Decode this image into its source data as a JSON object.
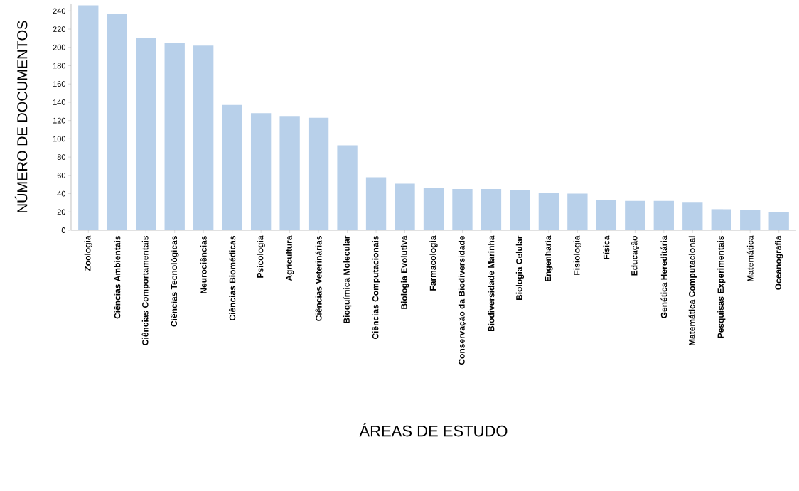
{
  "chart_data": {
    "type": "bar",
    "xlabel": "ÁREAS DE ESTUDO",
    "ylabel": "NÚMERO DE DOCUMENTOS",
    "categories": [
      "Zoologia",
      "Ciências Ambientais",
      "Ciências Comportamentais",
      "Ciências Tecnológicas",
      "Neurociências",
      "Ciências Biomédicas",
      "Psicologia",
      "Agricultura",
      "Ciências Veterinárias",
      "Bioquímica Molecular",
      "Ciências Computacionais",
      "Biologia Evolutiva",
      "Farmacologia",
      "Conservação da Biodiversidade",
      "Biodiversidade Marinha",
      "Biologia Celular",
      "Engenharia",
      "Fisiologia",
      "Física",
      "Educação",
      "Genética Hereditária",
      "Matemática Computacional",
      "Pesquisas Experimentais",
      "Matemática",
      "Oceanografia"
    ],
    "values": [
      246,
      237,
      210,
      205,
      202,
      137,
      128,
      125,
      123,
      93,
      58,
      51,
      46,
      45,
      45,
      44,
      41,
      40,
      33,
      32,
      32,
      31,
      23,
      22,
      20
    ],
    "color": "#b8d0ea",
    "ylim": [
      0,
      248
    ],
    "yticks": [
      0,
      20,
      40,
      60,
      80,
      100,
      120,
      140,
      160,
      180,
      200,
      220,
      240
    ]
  }
}
